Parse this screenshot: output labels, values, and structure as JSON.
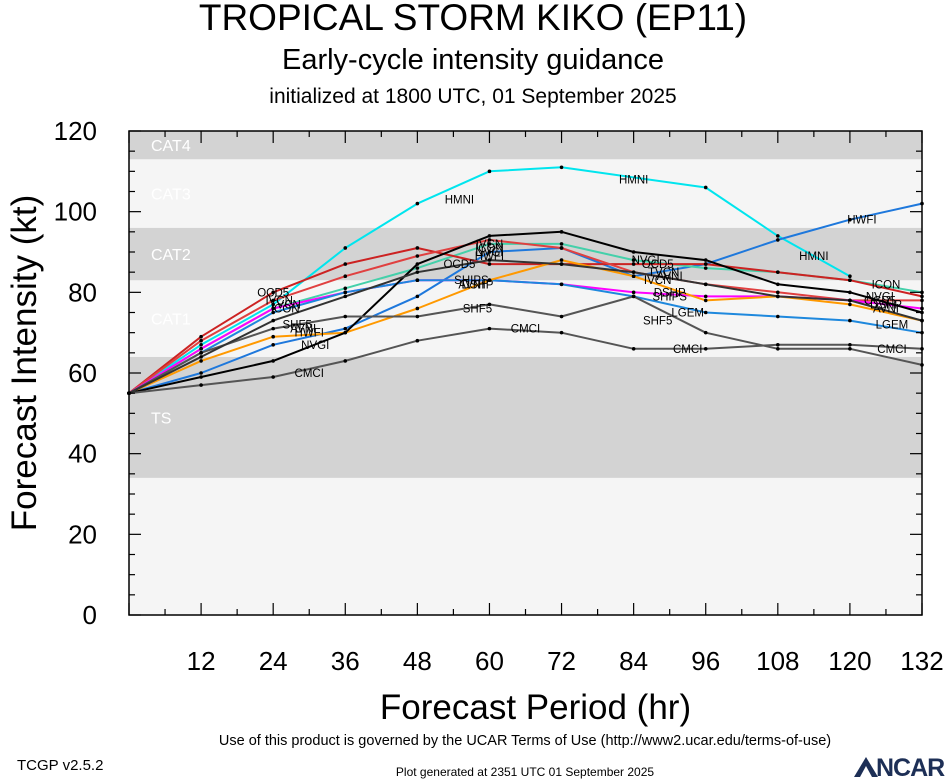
{
  "chart_data": {
    "type": "line",
    "title": "TROPICAL STORM KIKO (EP11)",
    "subtitle": "Early-cycle intensity guidance",
    "subtitle2": "initialized at 1800 UTC, 01 September 2025",
    "xlabel": "Forecast Period (hr)",
    "ylabel": "Forecast Intensity (kt)",
    "xlim": [
      0,
      132
    ],
    "ylim": [
      0,
      120
    ],
    "xticks": [
      "12",
      "24",
      "36",
      "48",
      "60",
      "72",
      "84",
      "96",
      "108",
      "120",
      "132"
    ],
    "yticks": [
      "0",
      "20",
      "40",
      "60",
      "80",
      "100",
      "120"
    ],
    "grid": false,
    "bands": [
      {
        "label": "TS",
        "from": 34,
        "to": 64,
        "color": "#d3d3d3"
      },
      {
        "label": "CAT1",
        "from": 64,
        "to": 83,
        "color": "#f5f5f5"
      },
      {
        "label": "CAT2",
        "from": 83,
        "to": 96,
        "color": "#d3d3d3"
      },
      {
        "label": "CAT3",
        "from": 96,
        "to": 113,
        "color": "#f5f5f5"
      },
      {
        "label": "CAT4",
        "from": 113,
        "to": 120,
        "color": "#d3d3d3"
      }
    ],
    "series": [
      {
        "name": "HMNI",
        "color": "#00e5ee",
        "x": [
          0,
          12,
          24,
          36,
          48,
          60,
          72,
          96,
          108,
          120
        ],
        "values": [
          55,
          67,
          77,
          91,
          102,
          110,
          111,
          106,
          94,
          84
        ]
      },
      {
        "name": "HWFI",
        "color": "#1e78dc",
        "x": [
          0,
          12,
          24,
          36,
          48,
          60,
          72,
          84,
          96,
          108,
          120,
          132
        ],
        "values": [
          55,
          60,
          67,
          71,
          79,
          90,
          91,
          84,
          87,
          93,
          98,
          102
        ]
      },
      {
        "name": "ICON",
        "color": "#44d0aa",
        "x": [
          0,
          12,
          24,
          36,
          48,
          60,
          72,
          84,
          96,
          108,
          120,
          132
        ],
        "values": [
          55,
          66,
          76,
          81,
          86,
          92,
          92,
          88,
          86,
          85,
          83,
          80
        ]
      },
      {
        "name": "OCD5",
        "color": "#cc2222",
        "x": [
          0,
          12,
          24,
          36,
          48,
          60,
          72,
          84,
          96,
          108,
          120,
          132
        ],
        "values": [
          55,
          69,
          80,
          87,
          91,
          87,
          87,
          87,
          87,
          85,
          83,
          79
        ]
      },
      {
        "name": "IVCN",
        "color": "#e04040",
        "x": [
          0,
          12,
          24,
          36,
          48,
          60,
          72,
          84,
          96,
          108,
          120,
          132
        ],
        "values": [
          55,
          68,
          78,
          84,
          89,
          93,
          91,
          85,
          82,
          80,
          78,
          78
        ]
      },
      {
        "name": "DSHP",
        "color": "#ff00ff",
        "x": [
          0,
          12,
          24,
          36,
          48,
          60,
          72,
          84,
          96,
          108,
          120,
          132
        ],
        "values": [
          55,
          66,
          76,
          80,
          83,
          83,
          82,
          80,
          79,
          79,
          78,
          76
        ]
      },
      {
        "name": "LGEM",
        "color": "#1e88dd",
        "x": [
          0,
          12,
          24,
          36,
          48,
          60,
          72,
          84,
          96,
          108,
          120,
          132
        ],
        "values": [
          55,
          65,
          75,
          80,
          83,
          83,
          82,
          79,
          75,
          74,
          73,
          70
        ]
      },
      {
        "name": "AVNI",
        "color": "#ff9900",
        "x": [
          0,
          12,
          24,
          36,
          48,
          60,
          72,
          84,
          96,
          108,
          120,
          132
        ],
        "values": [
          55,
          63,
          69,
          70,
          76,
          83,
          88,
          84,
          78,
          79,
          77,
          73
        ]
      },
      {
        "name": "NVGI",
        "color": "#000000",
        "x": [
          0,
          12,
          24,
          36,
          48,
          60,
          72,
          84,
          96,
          108,
          120,
          132
        ],
        "values": [
          55,
          59,
          63,
          70,
          87,
          94,
          95,
          90,
          88,
          82,
          80,
          75
        ]
      },
      {
        "name": "SHF5",
        "color": "#555555",
        "x": [
          0,
          12,
          24,
          36,
          48,
          60,
          72,
          84,
          96,
          108,
          120,
          132
        ],
        "values": [
          55,
          65,
          71,
          74,
          74,
          77,
          74,
          79,
          70,
          66,
          66,
          62
        ]
      },
      {
        "name": "CMCI",
        "color": "#555555",
        "x": [
          0,
          12,
          24,
          36,
          48,
          60,
          72,
          84,
          96,
          108,
          120,
          132
        ],
        "values": [
          55,
          57,
          59,
          63,
          68,
          71,
          70,
          66,
          66,
          67,
          67,
          66
        ]
      },
      {
        "name": "TVCN",
        "color": "#333333",
        "x": [
          0,
          12,
          24,
          36,
          48,
          60,
          72,
          84,
          96,
          108,
          120,
          132
        ],
        "values": [
          55,
          64,
          73,
          79,
          85,
          88,
          87,
          85,
          82,
          79,
          78,
          73
        ]
      }
    ],
    "annotations": [
      {
        "text": "HMNI",
        "x": 55,
        "y": 103
      },
      {
        "text": "HMNI",
        "x": 84,
        "y": 108
      },
      {
        "text": "HMNI",
        "x": 114,
        "y": 89
      },
      {
        "text": "HWFI",
        "x": 122,
        "y": 98
      },
      {
        "text": "ICON",
        "x": 126,
        "y": 82
      },
      {
        "text": "NVGI",
        "x": 86,
        "y": 88
      },
      {
        "text": "OCD5",
        "x": 88,
        "y": 87
      },
      {
        "text": "TVCN",
        "x": 89,
        "y": 85
      },
      {
        "text": "IVCN",
        "x": 88,
        "y": 83
      },
      {
        "text": "DSHP",
        "x": 90,
        "y": 80
      },
      {
        "text": "SHIPS",
        "x": 90,
        "y": 79
      },
      {
        "text": "LGEM",
        "x": 93,
        "y": 75
      },
      {
        "text": "SHF5",
        "x": 58,
        "y": 76
      },
      {
        "text": "SHF5",
        "x": 28,
        "y": 72
      },
      {
        "text": "SHF5",
        "x": 88,
        "y": 73
      },
      {
        "text": "CMCI",
        "x": 30,
        "y": 60
      },
      {
        "text": "CMCI",
        "x": 66,
        "y": 71
      },
      {
        "text": "CMCI",
        "x": 93,
        "y": 66
      },
      {
        "text": "CMCI",
        "x": 127,
        "y": 66
      },
      {
        "text": "NVGI",
        "x": 31,
        "y": 67
      },
      {
        "text": "HWFI",
        "x": 30,
        "y": 70
      },
      {
        "text": "AVNI",
        "x": 29,
        "y": 71
      },
      {
        "text": "OCD5",
        "x": 24,
        "y": 80
      },
      {
        "text": "IVCN",
        "x": 25,
        "y": 78
      },
      {
        "text": "ICON",
        "x": 26,
        "y": 76
      },
      {
        "text": "TVCN",
        "x": 26,
        "y": 77
      },
      {
        "text": "IVCN",
        "x": 60,
        "y": 92
      },
      {
        "text": "ICON",
        "x": 60,
        "y": 91
      },
      {
        "text": "NVGI",
        "x": 60,
        "y": 90
      },
      {
        "text": "HWFI",
        "x": 60,
        "y": 89
      },
      {
        "text": "OCD5",
        "x": 55,
        "y": 87
      },
      {
        "text": "SHIPS",
        "x": 57,
        "y": 83
      },
      {
        "text": "DSHP",
        "x": 58,
        "y": 82
      },
      {
        "text": "AVNI",
        "x": 57,
        "y": 82
      },
      {
        "text": "AVNI",
        "x": 90,
        "y": 84
      },
      {
        "text": "NVGI",
        "x": 125,
        "y": 79
      },
      {
        "text": "OCD5",
        "x": 125,
        "y": 78
      },
      {
        "text": "DSHP",
        "x": 126,
        "y": 77
      },
      {
        "text": "AVNI",
        "x": 126,
        "y": 76
      },
      {
        "text": "LGEM",
        "x": 127,
        "y": 72
      }
    ]
  },
  "footer": {
    "terms": "Use of this product is governed by the UCAR Terms of Use (http://www2.ucar.edu/terms-of-use)",
    "version": "TCGP v2.5.2",
    "generated": "Plot generated at 2351 UTC   01 September 2025",
    "logo_text": "NCAR"
  }
}
